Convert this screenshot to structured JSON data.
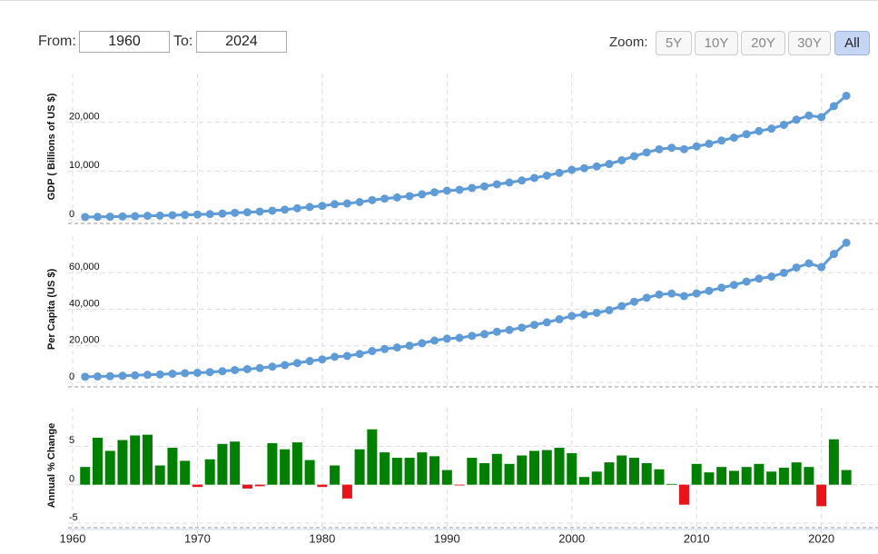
{
  "controls": {
    "from_label": "From:",
    "from_value": "1960",
    "to_label": "To:",
    "to_value": "2024",
    "zoom_label": "Zoom:",
    "zoom_options": [
      "5Y",
      "10Y",
      "20Y",
      "30Y",
      "All"
    ],
    "zoom_active": "All"
  },
  "chart_data": [
    {
      "type": "line",
      "y_label": "GDP ( Billions of US $)",
      "color": "#5f9bd6",
      "grid": true,
      "x": [
        1961,
        1962,
        1963,
        1964,
        1965,
        1966,
        1967,
        1968,
        1969,
        1970,
        1971,
        1972,
        1973,
        1974,
        1975,
        1976,
        1977,
        1978,
        1979,
        1980,
        1981,
        1982,
        1983,
        1984,
        1985,
        1986,
        1987,
        1988,
        1989,
        1990,
        1991,
        1992,
        1993,
        1994,
        1995,
        1996,
        1997,
        1998,
        1999,
        2000,
        2001,
        2002,
        2003,
        2004,
        2005,
        2006,
        2007,
        2008,
        2009,
        2010,
        2011,
        2012,
        2013,
        2014,
        2015,
        2016,
        2017,
        2018,
        2019,
        2020,
        2021,
        2022
      ],
      "values": [
        563,
        605,
        638,
        686,
        744,
        815,
        862,
        943,
        1019,
        1073,
        1165,
        1280,
        1425,
        1545,
        1684,
        1873,
        2082,
        2352,
        2627,
        2857,
        3207,
        3343,
        3634,
        4037,
        4339,
        4580,
        4855,
        5236,
        5642,
        5963,
        6158,
        6520,
        6859,
        7287,
        7639,
        8073,
        8578,
        9063,
        9631,
        10251,
        10582,
        10936,
        11458,
        12214,
        13037,
        13815,
        14475,
        14770,
        14478,
        15049,
        15600,
        16254,
        16843,
        17551,
        18206,
        18695,
        19477,
        20533,
        21381,
        21060,
        23315,
        25440
      ],
      "ylim": [
        0,
        30000
      ],
      "yticks": [
        0,
        {
          "value": 10000,
          "label": "10,000"
        },
        {
          "value": 20000,
          "label": "20,000"
        }
      ]
    },
    {
      "type": "line",
      "y_label": "Per Capita (US $)",
      "color": "#5f9bd6",
      "grid": true,
      "x": [
        1961,
        1962,
        1963,
        1964,
        1965,
        1966,
        1967,
        1968,
        1969,
        1970,
        1971,
        1972,
        1973,
        1974,
        1975,
        1976,
        1977,
        1978,
        1979,
        1980,
        1981,
        1982,
        1983,
        1984,
        1985,
        1986,
        1987,
        1988,
        1989,
        1990,
        1991,
        1992,
        1993,
        1994,
        1995,
        1996,
        1997,
        1998,
        1999,
        2000,
        2001,
        2002,
        2003,
        2004,
        2005,
        2006,
        2007,
        2008,
        2009,
        2010,
        2011,
        2012,
        2013,
        2014,
        2015,
        2016,
        2017,
        2018,
        2019,
        2020,
        2021,
        2022
      ],
      "values": [
        3067,
        3244,
        3375,
        3574,
        3828,
        4146,
        4336,
        4696,
        5032,
        5234,
        5609,
        6094,
        6726,
        7226,
        7801,
        8592,
        9453,
        10565,
        11674,
        12575,
        13976,
        14434,
        15544,
        17121,
        18237,
        19071,
        20039,
        21417,
        22857,
        23889,
        24342,
        25419,
        26387,
        27695,
        28691,
        29968,
        31459,
        32854,
        34515,
        36330,
        37134,
        38023,
        39496,
        41713,
        44115,
        46299,
        48050,
        48570,
        47195,
        48651,
        50066,
        51784,
        53291,
        55124,
        56763,
        57867,
        59915,
        62805,
        65095,
        63028,
        70220,
        76399
      ],
      "ylim": [
        0,
        80000
      ],
      "yticks": [
        0,
        {
          "value": 20000,
          "label": "20,000"
        },
        {
          "value": 40000,
          "label": "40,000"
        },
        {
          "value": 60000,
          "label": "60,000"
        }
      ]
    },
    {
      "type": "bar",
      "y_label": "Annual % Change",
      "color": "#008000",
      "negative_color": "#e8141a",
      "grid": true,
      "x": [
        1961,
        1962,
        1963,
        1964,
        1965,
        1966,
        1967,
        1968,
        1969,
        1970,
        1971,
        1972,
        1973,
        1974,
        1975,
        1976,
        1977,
        1978,
        1979,
        1980,
        1981,
        1982,
        1983,
        1984,
        1985,
        1986,
        1987,
        1988,
        1989,
        1990,
        1991,
        1992,
        1993,
        1994,
        1995,
        1996,
        1997,
        1998,
        1999,
        2000,
        2001,
        2002,
        2003,
        2004,
        2005,
        2006,
        2007,
        2008,
        2009,
        2010,
        2011,
        2012,
        2013,
        2014,
        2015,
        2016,
        2017,
        2018,
        2019,
        2020,
        2021,
        2022
      ],
      "values": [
        2.3,
        6.1,
        4.4,
        5.8,
        6.4,
        6.5,
        2.5,
        4.8,
        3.1,
        -0.3,
        3.3,
        5.3,
        5.6,
        -0.5,
        -0.2,
        5.4,
        4.6,
        5.5,
        3.2,
        -0.3,
        2.5,
        -1.8,
        4.6,
        7.2,
        4.2,
        3.5,
        3.5,
        4.2,
        3.7,
        1.9,
        -0.1,
        3.5,
        2.8,
        4.0,
        2.7,
        3.8,
        4.4,
        4.5,
        4.8,
        4.1,
        1.0,
        1.7,
        2.9,
        3.8,
        3.5,
        2.8,
        2.0,
        0.1,
        -2.6,
        2.7,
        1.6,
        2.3,
        1.8,
        2.3,
        2.7,
        1.7,
        2.2,
        2.9,
        2.3,
        -2.8,
        5.9,
        1.9
      ],
      "ylim": [
        -5,
        10
      ],
      "yticks": [
        -5,
        0,
        5
      ],
      "xlim": [
        1960,
        2022.5
      ],
      "xticks": [
        1960,
        1970,
        1980,
        1990,
        2000,
        2010,
        2020
      ]
    }
  ]
}
